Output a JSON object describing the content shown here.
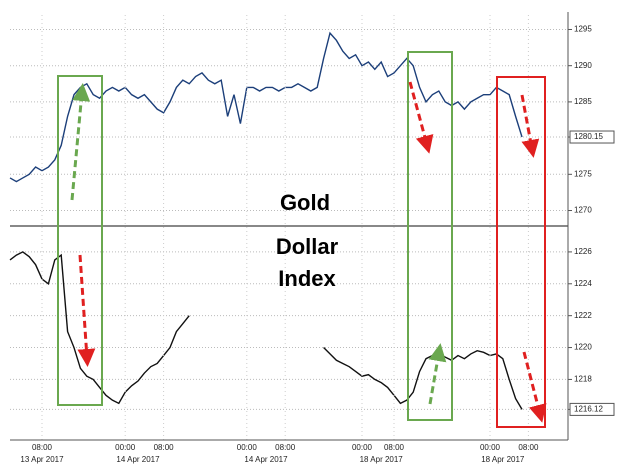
{
  "chart_data": [
    {
      "type": "line",
      "annotation": "Gold",
      "series": [
        {
          "color": "#1c3f7a",
          "values": [
            1274.5,
            1274,
            1274.5,
            1275,
            1276,
            1275.5,
            1276,
            1277,
            1279,
            1283,
            1286,
            1287,
            1287.5,
            1286,
            1285.5,
            1286.5,
            1287,
            1286.5,
            1287,
            1286,
            1285.5,
            1286,
            1285,
            1284,
            1283.5,
            1285,
            1287,
            1288,
            1287.5,
            1288.5,
            1289,
            1288,
            1287.5,
            1288,
            1283,
            1286,
            1282,
            1287,
            1287,
            1286.5,
            1287,
            1287,
            1286.5,
            1287,
            1287,
            1287.5,
            1287,
            1286.5,
            1287,
            1291,
            1294.5,
            1293.5,
            1292,
            1291,
            1291.5,
            1290,
            1290.5,
            1289.5,
            1290.5,
            1288.5,
            1289,
            1290,
            1291,
            1290,
            1287,
            1285,
            1286,
            1286.5,
            1285,
            1284.5,
            1285,
            1284,
            1285,
            1285.5,
            1286,
            1286,
            1287,
            1286.5,
            1286,
            1283,
            1280.15,
            null
          ]
        }
      ],
      "ylim": [
        1268,
        1297
      ],
      "yticks": [
        1270,
        1275,
        1280.15,
        1285,
        1290,
        1295
      ],
      "grid": true
    },
    {
      "type": "line",
      "annotation": [
        "Dollar",
        "Index"
      ],
      "categories": [
        null,
        null,
        null,
        null,
        null,
        "08:00",
        null,
        null,
        null,
        null,
        null,
        null,
        null,
        null,
        null,
        null,
        null,
        null,
        "00:00",
        null,
        null,
        null,
        null,
        null,
        "08:00",
        null,
        null,
        null,
        null,
        null,
        null,
        null,
        null,
        null,
        null,
        null,
        null,
        "00:00",
        null,
        null,
        null,
        null,
        null,
        "08:00",
        null,
        null,
        null,
        null,
        null,
        null,
        null,
        null,
        null,
        null,
        null,
        "00:00",
        null,
        null,
        null,
        null,
        "08:00",
        null,
        null,
        null,
        null,
        null,
        null,
        null,
        null,
        null,
        null,
        null,
        null,
        null,
        null,
        "00:00",
        null,
        null,
        null,
        null,
        null,
        "08:00"
      ],
      "dates": [
        null,
        null,
        null,
        null,
        null,
        "13 Apr 2017",
        null,
        null,
        null,
        null,
        null,
        null,
        null,
        null,
        null,
        null,
        null,
        null,
        null,
        null,
        "14 Apr 2017",
        null,
        null,
        null,
        null,
        null,
        null,
        null,
        null,
        null,
        null,
        null,
        null,
        null,
        null,
        null,
        null,
        null,
        null,
        null,
        "14 Apr 2017",
        null,
        null,
        null,
        null,
        null,
        null,
        null,
        null,
        null,
        null,
        null,
        null,
        null,
        null,
        null,
        null,
        null,
        "18 Apr 2017",
        null,
        null,
        null,
        null,
        null,
        null,
        null,
        null,
        null,
        null,
        null,
        null,
        null,
        null,
        null,
        null,
        null,
        null,
        "18 Apr 2017",
        null,
        null,
        null,
        null
      ],
      "series": [
        {
          "color": "#111111",
          "values": [
            1225.5,
            1225.8,
            1226,
            1225.7,
            1225.2,
            1224.3,
            1224,
            1225.5,
            1225.8,
            1221,
            1220,
            1218.7,
            1218.2,
            1218,
            1217.5,
            1217,
            1216.7,
            1216.5,
            1217.2,
            1217.6,
            1217.9,
            1218.4,
            1218.8,
            1219,
            1219.5,
            1220,
            1221,
            1221.5,
            1222,
            null,
            null,
            null,
            null,
            null,
            null,
            null,
            null,
            null,
            null,
            null,
            null,
            null,
            null,
            null,
            null,
            null,
            null,
            null,
            null,
            1220,
            1219.6,
            1219.2,
            1219,
            1218.8,
            1218.5,
            1218.2,
            1218.3,
            1218,
            1217.8,
            1217.5,
            1217,
            1216.5,
            1216.7,
            1217.2,
            1218.5,
            1219.3,
            1219.5,
            1219.6,
            1219.4,
            1219.2,
            1219.5,
            1219.3,
            1219.6,
            1219.8,
            1219.7,
            1219.5,
            1219.6,
            1219.3,
            1218,
            1216.8,
            1216.12,
            null
          ]
        }
      ],
      "ylim": [
        1214.2,
        1227.5
      ],
      "yticks": [
        1216.12,
        1218,
        1220,
        1222,
        1224,
        1226
      ],
      "grid": true
    }
  ]
}
